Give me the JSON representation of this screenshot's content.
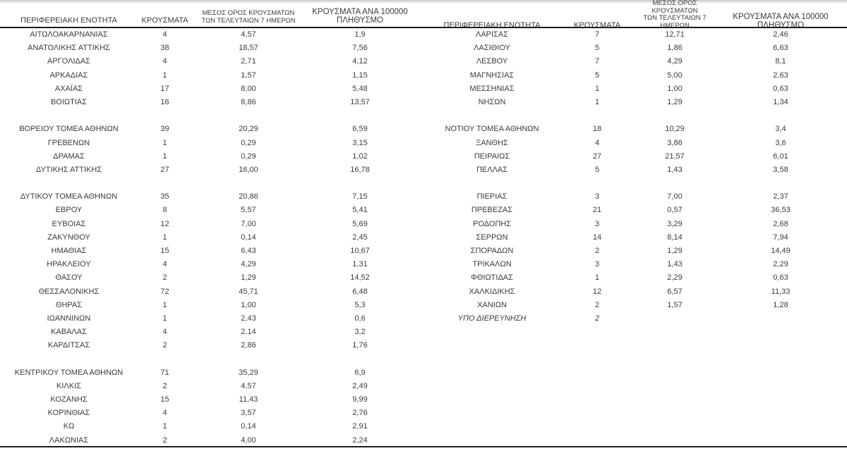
{
  "colors": {
    "text": "#3b3b3b",
    "rule_dark": "#1d1d1d",
    "rule_light": "#c6c6c6",
    "background": "#ffffff"
  },
  "header": {
    "col_region": {
      "lines": [
        "ΠΕΡΙΦΕΡΕΙΑΚΗ ΕΝΟΤΗΤΑ"
      ]
    },
    "col_cases": {
      "lines": [
        "ΚΡΟΥΣΜΑΤΑ"
      ]
    },
    "col_avg7": {
      "lines": [
        "ΜΕΣΟΣ ΟΡΟΣ ΚΡΟΥΣΜΑΤΩΝ",
        "ΤΩΝ ΤΕΛΕΥΤΑΙΩΝ 7 ΗΜΕΡΩΝ"
      ]
    },
    "col_per100k": {
      "lines": [
        "ΚΡΟΥΣΜΑΤΑ ΑΝΑ 100000",
        "ΠΛΗΘΥΣΜΟ"
      ]
    }
  },
  "left_rows": [
    {
      "region": "ΑΙΤΩΛΟΑΚΑΡΝΑΝΙΑΣ",
      "cases": "4",
      "avg7": "4,57",
      "per100k": "1,9"
    },
    {
      "region": "ΑΝΑΤΟΛΙΚΗΣ ΑΤΤΙΚΗΣ",
      "cases": "38",
      "avg7": "18,57",
      "per100k": "7,56"
    },
    {
      "region": "ΑΡΓΟΛΙΔΑΣ",
      "cases": "4",
      "avg7": "2,71",
      "per100k": "4,12"
    },
    {
      "region": "ΑΡΚΑΔΙΑΣ",
      "cases": "1",
      "avg7": "1,57",
      "per100k": "1,15"
    },
    {
      "region": "ΑΧΑΪΑΣ",
      "cases": "17",
      "avg7": "8,00",
      "per100k": "5,48"
    },
    {
      "region": "ΒΟΙΩΤΙΑΣ",
      "cases": "16",
      "avg7": "8,86",
      "per100k": "13,57"
    },
    null,
    {
      "region": "ΒΟΡΕΙΟΥ ΤΟΜΕΑ ΑΘΗΝΩΝ",
      "cases": "39",
      "avg7": "20,29",
      "per100k": "6,59"
    },
    {
      "region": "ΓΡΕΒΕΝΩΝ",
      "cases": "1",
      "avg7": "0,29",
      "per100k": "3,15"
    },
    {
      "region": "ΔΡΑΜΑΣ",
      "cases": "1",
      "avg7": "0,29",
      "per100k": "1,02"
    },
    {
      "region": "ΔΥΤΙΚΗΣ ΑΤΤΙΚΗΣ",
      "cases": "27",
      "avg7": "16,00",
      "per100k": "16,78"
    },
    null,
    {
      "region": "ΔΥΤΙΚΟΥ ΤΟΜΕΑ ΑΘΗΝΩΝ",
      "cases": "35",
      "avg7": "20,86",
      "per100k": "7,15"
    },
    {
      "region": "ΕΒΡΟΥ",
      "cases": "8",
      "avg7": "5,57",
      "per100k": "5,41"
    },
    {
      "region": "ΕΥΒΟΙΑΣ",
      "cases": "12",
      "avg7": "7,00",
      "per100k": "5,69"
    },
    {
      "region": "ΖΑΚΥΝΘΟΥ",
      "cases": "1",
      "avg7": "0,14",
      "per100k": "2,45"
    },
    {
      "region": "ΗΜΑΘΙΑΣ",
      "cases": "15",
      "avg7": "6,43",
      "per100k": "10,67"
    },
    {
      "region": "ΗΡΑΚΛΕΙΟΥ",
      "cases": "4",
      "avg7": "4,29",
      "per100k": "1,31"
    },
    {
      "region": "ΘΑΣΟΥ",
      "cases": "2",
      "avg7": "1,29",
      "per100k": "14,52"
    },
    {
      "region": "ΘΕΣΣΑΛΟΝΙΚΗΣ",
      "cases": "72",
      "avg7": "45,71",
      "per100k": "6,48"
    },
    {
      "region": "ΘΗΡΑΣ",
      "cases": "1",
      "avg7": "1,00",
      "per100k": "5,3"
    },
    {
      "region": "ΙΩΑΝΝΙΝΩΝ",
      "cases": "1",
      "avg7": "2,43",
      "per100k": "0,6"
    },
    {
      "region": "ΚΑΒΑΛΑΣ",
      "cases": "4",
      "avg7": "2,14",
      "per100k": "3,2"
    },
    {
      "region": "ΚΑΡΔΙΤΣΑΣ",
      "cases": "2",
      "avg7": "2,86",
      "per100k": "1,76"
    },
    null,
    {
      "region": "ΚΕΝΤΡΙΚΟΥ ΤΟΜΕΑ ΑΘΗΝΩΝ",
      "cases": "71",
      "avg7": "35,29",
      "per100k": "6,9"
    },
    {
      "region": "ΚΙΛΚΙΣ",
      "cases": "2",
      "avg7": "4,57",
      "per100k": "2,49"
    },
    {
      "region": "ΚΟΖΑΝΗΣ",
      "cases": "15",
      "avg7": "11,43",
      "per100k": "9,99"
    },
    {
      "region": "ΚΟΡΙΝΘΙΑΣ",
      "cases": "4",
      "avg7": "3,57",
      "per100k": "2,76"
    },
    {
      "region": "ΚΩ",
      "cases": "1",
      "avg7": "0,14",
      "per100k": "2,91"
    },
    {
      "region": "ΛΑΚΩΝΙΑΣ",
      "cases": "2",
      "avg7": "4,00",
      "per100k": "2,24"
    }
  ],
  "right_rows": [
    {
      "region": "ΛΑΡΙΣΑΣ",
      "cases": "7",
      "avg7": "12,71",
      "per100k": "2,46"
    },
    {
      "region": "ΛΑΣΙΘΙΟΥ",
      "cases": "5",
      "avg7": "1,86",
      "per100k": "6,63"
    },
    {
      "region": "ΛΕΣΒΟΥ",
      "cases": "7",
      "avg7": "4,29",
      "per100k": "8,1"
    },
    {
      "region": "ΜΑΓΝΗΣΙΑΣ",
      "cases": "5",
      "avg7": "5,00",
      "per100k": "2,63"
    },
    {
      "region": "ΜΕΣΣΗΝΙΑΣ",
      "cases": "1",
      "avg7": "1,00",
      "per100k": "0,63"
    },
    {
      "region": "ΝΗΣΩΝ",
      "cases": "1",
      "avg7": "1,29",
      "per100k": "1,34"
    },
    null,
    {
      "region": "ΝΟΤΙΟΥ ΤΟΜΕΑ ΑΘΗΝΩΝ",
      "cases": "18",
      "avg7": "10,29",
      "per100k": "3,4"
    },
    {
      "region": "ΞΑΝΘΗΣ",
      "cases": "4",
      "avg7": "3,86",
      "per100k": "3,6"
    },
    {
      "region": "ΠΕΙΡΑΙΩΣ",
      "cases": "27",
      "avg7": "21,57",
      "per100k": "6,01"
    },
    {
      "region": "ΠΕΛΛΑΣ",
      "cases": "5",
      "avg7": "1,43",
      "per100k": "3,58"
    },
    null,
    {
      "region": "ΠΙΕΡΙΑΣ",
      "cases": "3",
      "avg7": "7,00",
      "per100k": "2,37"
    },
    {
      "region": "ΠΡΕΒΕΖΑΣ",
      "cases": "21",
      "avg7": "0,57",
      "per100k": "36,53"
    },
    {
      "region": "ΡΟΔΟΠΗΣ",
      "cases": "3",
      "avg7": "3,29",
      "per100k": "2,68"
    },
    {
      "region": "ΣΕΡΡΩΝ",
      "cases": "14",
      "avg7": "8,14",
      "per100k": "7,94"
    },
    {
      "region": "ΣΠΟΡΑΔΩΝ",
      "cases": "2",
      "avg7": "1,29",
      "per100k": "14,49"
    },
    {
      "region": "ΤΡΙΚΑΛΩΝ",
      "cases": "3",
      "avg7": "1,43",
      "per100k": "2,29"
    },
    {
      "region": "ΦΘΙΩΤΙΔΑΣ",
      "cases": "1",
      "avg7": "2,29",
      "per100k": "0,63"
    },
    {
      "region": "ΧΑΛΚΙΔΙΚΗΣ",
      "cases": "12",
      "avg7": "6,57",
      "per100k": "11,33"
    },
    {
      "region": "ΧΑΝΙΩΝ",
      "cases": "2",
      "avg7": "1,57",
      "per100k": "1,28"
    },
    {
      "region": "ΥΠΟ ΔΙΕΡΕΥΝΗΣΗ",
      "cases": "2",
      "avg7": "",
      "per100k": "",
      "italic": true
    },
    null,
    null,
    null,
    null,
    null,
    null,
    null,
    null,
    null
  ]
}
